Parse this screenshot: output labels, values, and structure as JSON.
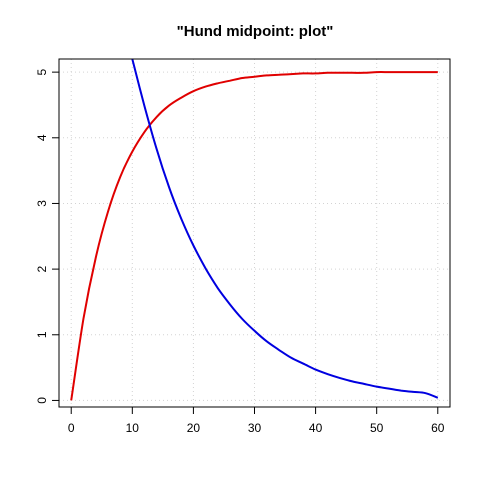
{
  "chart_data": {
    "type": "line",
    "title": "\"Hund midpoint: plot\"",
    "xlabel": "",
    "ylabel": "",
    "xlim": [
      -2,
      62
    ],
    "ylim": [
      -0.1,
      5.2
    ],
    "x_ticks": [
      0,
      10,
      20,
      30,
      40,
      50,
      60
    ],
    "y_ticks": [
      0,
      1,
      2,
      3,
      4,
      5
    ],
    "grid": true,
    "grid_style": "dotted",
    "series": [
      {
        "color": "#e00000",
        "x": [
          0,
          2,
          4,
          6,
          8,
          10,
          12,
          14,
          16,
          18,
          20,
          22,
          24,
          26,
          28,
          30,
          32,
          34,
          36,
          38,
          40,
          42,
          44,
          46,
          48,
          50,
          52,
          54,
          56,
          58,
          60
        ],
        "y": [
          0.0,
          1.24,
          2.17,
          2.87,
          3.4,
          3.79,
          4.09,
          4.32,
          4.49,
          4.61,
          4.71,
          4.78,
          4.83,
          4.87,
          4.91,
          4.93,
          4.95,
          4.96,
          4.97,
          4.98,
          4.98,
          4.99,
          4.99,
          4.99,
          4.99,
          5.0,
          5.0,
          5.0,
          5.0,
          5.0,
          5.0
        ]
      },
      {
        "color": "#0000e0",
        "x": [
          10,
          12,
          14,
          16,
          18,
          20,
          22,
          24,
          26,
          28,
          30,
          32,
          34,
          36,
          38,
          40,
          42,
          44,
          46,
          48,
          50,
          52,
          54,
          56,
          58,
          60
        ],
        "y": [
          5.2,
          4.48,
          3.82,
          3.25,
          2.77,
          2.36,
          2.01,
          1.71,
          1.46,
          1.24,
          1.06,
          0.9,
          0.77,
          0.65,
          0.56,
          0.47,
          0.4,
          0.34,
          0.29,
          0.25,
          0.21,
          0.18,
          0.15,
          0.13,
          0.11,
          0.04
        ]
      }
    ]
  }
}
